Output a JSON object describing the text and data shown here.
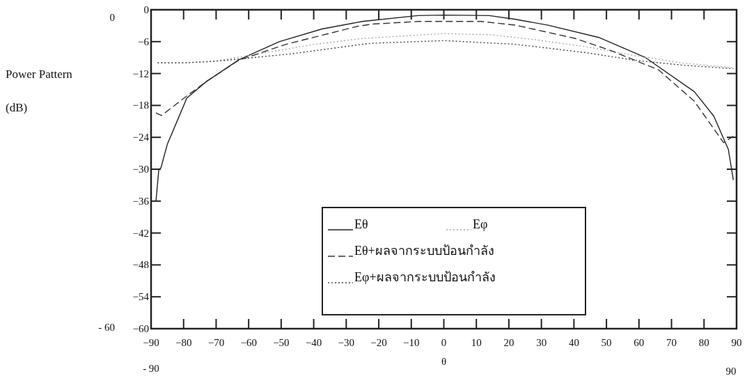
{
  "chart_data": {
    "type": "line",
    "xlabel": "θ",
    "ylabel": "Power Pattern (dB)",
    "xlim": [
      -90,
      90
    ],
    "ylim": [
      -60,
      0
    ],
    "xticks": [
      -90,
      -80,
      -70,
      -60,
      -50,
      -40,
      -30,
      -20,
      -10,
      0,
      10,
      20,
      30,
      40,
      50,
      60,
      70,
      80,
      90
    ],
    "yticks": [
      0,
      -6,
      -12,
      -18,
      -24,
      -30,
      -36,
      -42,
      -48,
      -54,
      -60
    ],
    "grid": false,
    "legend": "bottom",
    "marker": "none",
    "annotations": [
      "0",
      "- 60",
      "- 90",
      "90"
    ],
    "series": [
      {
        "name": "Eθ",
        "color": "#222222",
        "line_style": "solid",
        "x": [
          -88.5,
          -87.6,
          -87,
          -85,
          -79,
          -73,
          -63,
          -50.6,
          -37.4,
          -25,
          -8,
          0,
          14,
          22,
          32,
          47.6,
          62,
          77,
          83,
          87.5,
          89
        ],
        "values": [
          -36,
          -30,
          -29.8,
          -25.3,
          -16.6,
          -13.5,
          -9.4,
          -6,
          -3.6,
          -2.2,
          -1.1,
          -1,
          -1.1,
          -1.8,
          -2.9,
          -5.2,
          -9,
          -15.4,
          -20,
          -26.3,
          -32
        ]
      },
      {
        "name": "Eφ",
        "color": "#aaaaaa",
        "line_style": "dotted",
        "x": [
          -88,
          -80,
          -70,
          -61.8,
          -39.7,
          -25,
          0,
          14.5,
          29,
          44,
          58.6,
          73,
          89
        ],
        "values": [
          -10,
          -10,
          -9.6,
          -8.8,
          -6.5,
          -5.4,
          -4.5,
          -4.7,
          -5.7,
          -7,
          -8.6,
          -10,
          -10.9
        ]
      },
      {
        "name": "Eθ+ผลจากระบบป้อนกำลัง",
        "color": "#333333",
        "line_style": "dashed",
        "x": [
          -88.5,
          -86.8,
          -79,
          -73,
          -63,
          -48.5,
          -26.5,
          -22,
          -8,
          11.5,
          22,
          40.4,
          51.5,
          66,
          77,
          86,
          89
        ],
        "values": [
          -19.4,
          -19.9,
          -16.2,
          -13.5,
          -9.5,
          -6.5,
          -3.1,
          -2.7,
          -2.2,
          -2.2,
          -2.9,
          -5.4,
          -7.7,
          -11.3,
          -17.2,
          -25,
          -23.8
        ]
      },
      {
        "name": "Eφ+ผลจากระบบป้อนกำลัง",
        "color": "#444444",
        "line_style": "dotted",
        "x": [
          -88,
          -80,
          -70,
          -61.8,
          -47,
          -25,
          -22,
          0,
          22,
          44,
          58.6,
          73,
          89
        ],
        "values": [
          -10,
          -10,
          -9.7,
          -9.2,
          -8.3,
          -6.5,
          -6.3,
          -5.8,
          -6.5,
          -8.1,
          -9.5,
          -10.4,
          -11.1
        ]
      }
    ]
  }
}
